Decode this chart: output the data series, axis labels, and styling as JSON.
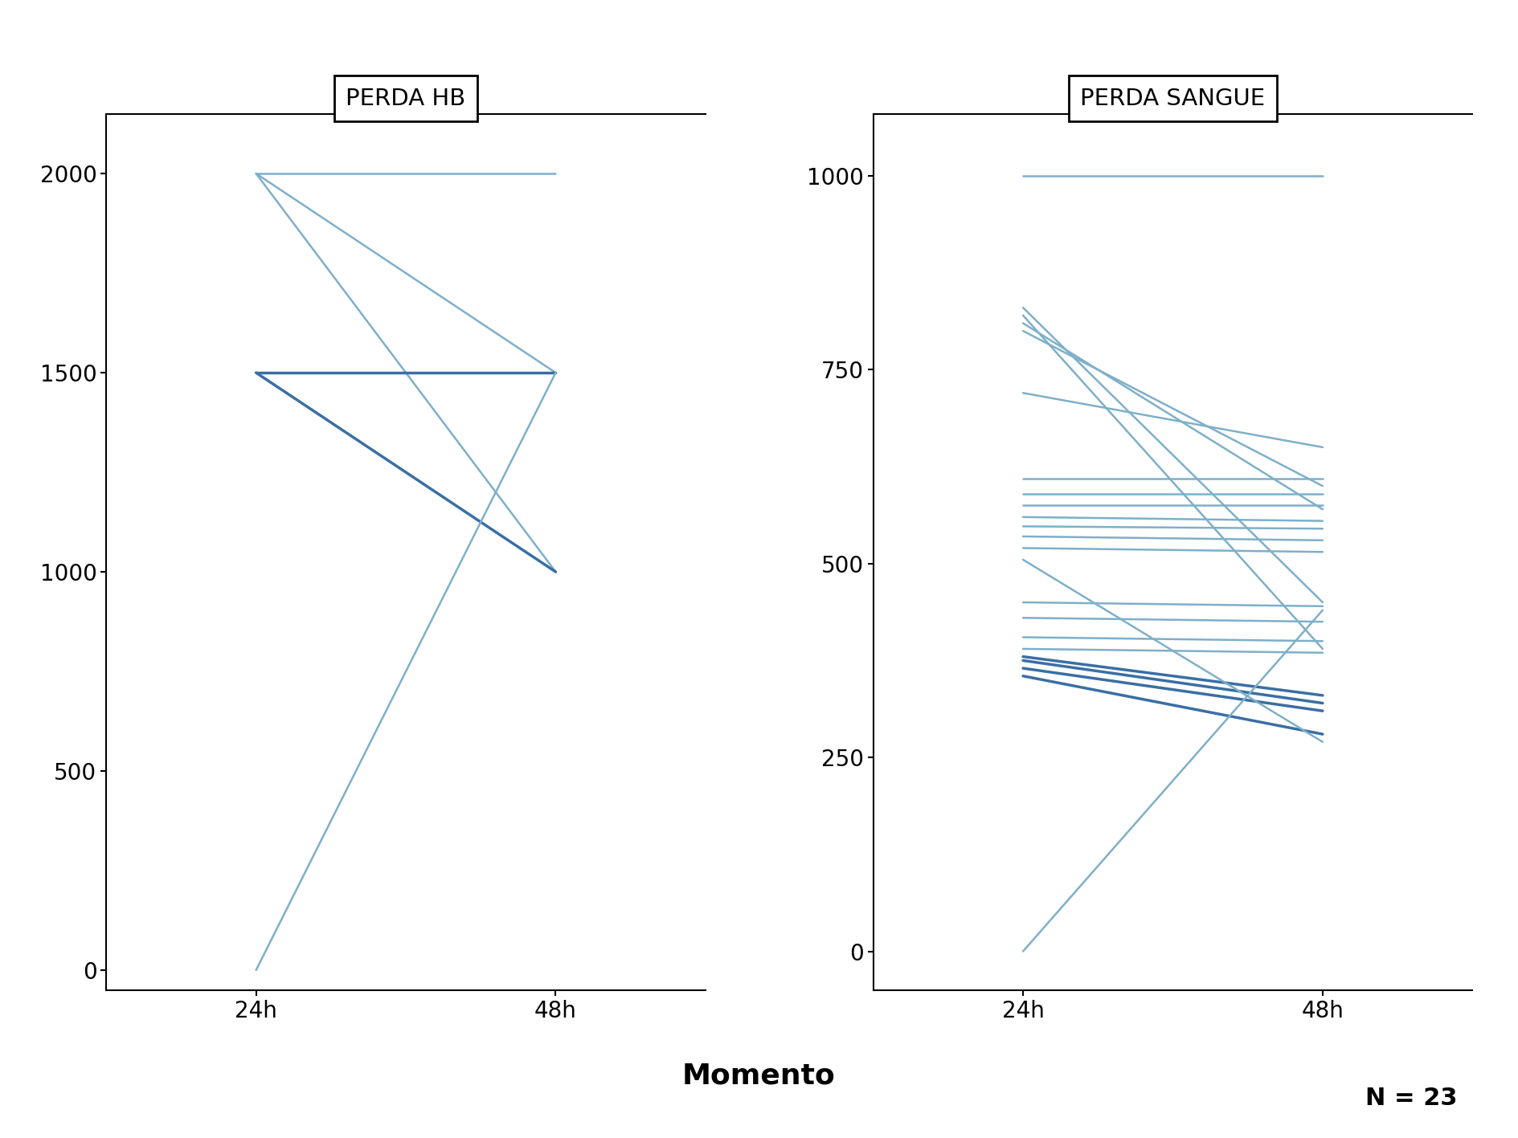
{
  "title_left": "PERDA HB",
  "title_right": "PERDA SANGUE",
  "xlabel": "Momento",
  "xtick_labels": [
    "24h",
    "48h"
  ],
  "n_label": "N = 23",
  "background_color": "#ffffff",
  "panel_background": "#ffffff",
  "light_blue": "#7eafc9",
  "dark_blue": "#3a6ea5",
  "hb_lines": [
    {
      "x": [
        0,
        1
      ],
      "y": [
        2000,
        2000
      ],
      "color": "#7eafc9",
      "lw": 1.8
    },
    {
      "x": [
        0,
        1
      ],
      "y": [
        2000,
        1500
      ],
      "color": "#7eafc9",
      "lw": 1.8
    },
    {
      "x": [
        0,
        1
      ],
      "y": [
        2000,
        1000
      ],
      "color": "#7eafc9",
      "lw": 1.8
    },
    {
      "x": [
        0,
        1
      ],
      "y": [
        1500,
        1500
      ],
      "color": "#3a6ea5",
      "lw": 2.5
    },
    {
      "x": [
        0,
        1
      ],
      "y": [
        1500,
        1000
      ],
      "color": "#3a6ea5",
      "lw": 2.5
    },
    {
      "x": [
        0,
        1
      ],
      "y": [
        0,
        1500
      ],
      "color": "#7eafc9",
      "lw": 1.8
    }
  ],
  "hb_ylim": [
    -50,
    2150
  ],
  "hb_yticks": [
    0,
    500,
    1000,
    1500,
    2000
  ],
  "sangue_lines": [
    {
      "x": [
        0,
        1
      ],
      "y": [
        1000,
        1000
      ],
      "color": "#7eafc9",
      "lw": 1.8
    },
    {
      "x": [
        0,
        1
      ],
      "y": [
        830,
        450
      ],
      "color": "#7eafc9",
      "lw": 1.8
    },
    {
      "x": [
        0,
        1
      ],
      "y": [
        820,
        390
      ],
      "color": "#7eafc9",
      "lw": 1.8
    },
    {
      "x": [
        0,
        1
      ],
      "y": [
        810,
        570
      ],
      "color": "#7eafc9",
      "lw": 1.8
    },
    {
      "x": [
        0,
        1
      ],
      "y": [
        800,
        600
      ],
      "color": "#7eafc9",
      "lw": 1.8
    },
    {
      "x": [
        0,
        1
      ],
      "y": [
        720,
        650
      ],
      "color": "#7eafc9",
      "lw": 1.8
    },
    {
      "x": [
        0,
        1
      ],
      "y": [
        610,
        610
      ],
      "color": "#7eafc9",
      "lw": 1.8
    },
    {
      "x": [
        0,
        1
      ],
      "y": [
        590,
        590
      ],
      "color": "#7eafc9",
      "lw": 1.8
    },
    {
      "x": [
        0,
        1
      ],
      "y": [
        575,
        575
      ],
      "color": "#7eafc9",
      "lw": 1.8
    },
    {
      "x": [
        0,
        1
      ],
      "y": [
        560,
        555
      ],
      "color": "#7eafc9",
      "lw": 1.8
    },
    {
      "x": [
        0,
        1
      ],
      "y": [
        548,
        545
      ],
      "color": "#7eafc9",
      "lw": 1.8
    },
    {
      "x": [
        0,
        1
      ],
      "y": [
        535,
        530
      ],
      "color": "#7eafc9",
      "lw": 1.8
    },
    {
      "x": [
        0,
        1
      ],
      "y": [
        520,
        515
      ],
      "color": "#7eafc9",
      "lw": 1.8
    },
    {
      "x": [
        0,
        1
      ],
      "y": [
        450,
        445
      ],
      "color": "#7eafc9",
      "lw": 1.8
    },
    {
      "x": [
        0,
        1
      ],
      "y": [
        430,
        425
      ],
      "color": "#7eafc9",
      "lw": 1.8
    },
    {
      "x": [
        0,
        1
      ],
      "y": [
        405,
        400
      ],
      "color": "#7eafc9",
      "lw": 1.8
    },
    {
      "x": [
        0,
        1
      ],
      "y": [
        390,
        385
      ],
      "color": "#7eafc9",
      "lw": 1.8
    },
    {
      "x": [
        0,
        1
      ],
      "y": [
        380,
        330
      ],
      "color": "#3a6ea5",
      "lw": 2.5
    },
    {
      "x": [
        0,
        1
      ],
      "y": [
        375,
        320
      ],
      "color": "#3a6ea5",
      "lw": 2.5
    },
    {
      "x": [
        0,
        1
      ],
      "y": [
        365,
        310
      ],
      "color": "#3a6ea5",
      "lw": 2.5
    },
    {
      "x": [
        0,
        1
      ],
      "y": [
        355,
        280
      ],
      "color": "#3a6ea5",
      "lw": 2.5
    },
    {
      "x": [
        0,
        1
      ],
      "y": [
        0,
        440
      ],
      "color": "#7eafc9",
      "lw": 1.8
    },
    {
      "x": [
        0,
        1
      ],
      "y": [
        505,
        270
      ],
      "color": "#7eafc9",
      "lw": 1.8
    }
  ],
  "sangue_ylim": [
    -50,
    1080
  ],
  "sangue_yticks": [
    0,
    250,
    500,
    750,
    1000
  ]
}
